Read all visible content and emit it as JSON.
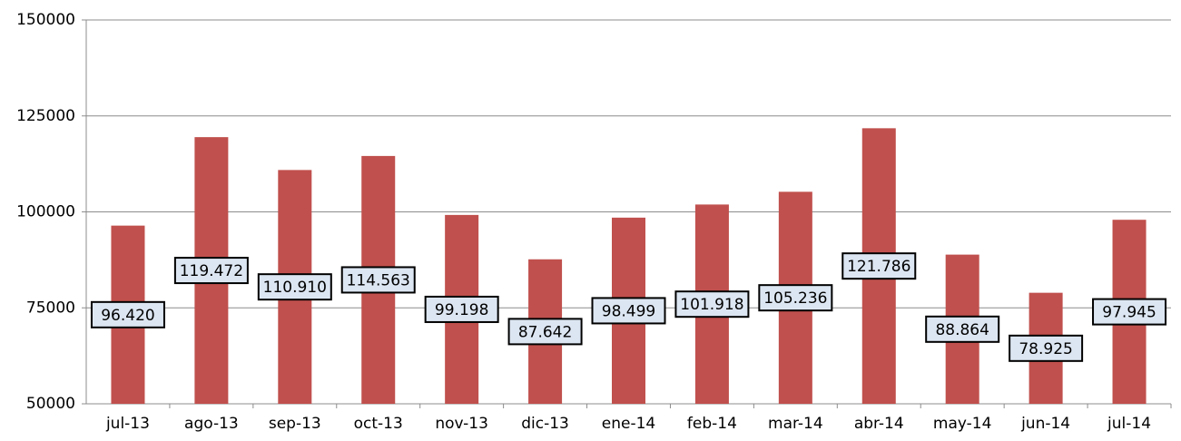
{
  "chart_data": {
    "type": "bar",
    "categories": [
      "jul-13",
      "ago-13",
      "sep-13",
      "oct-13",
      "nov-13",
      "dic-13",
      "ene-14",
      "feb-14",
      "mar-14",
      "abr-14",
      "may-14",
      "jun-14",
      "jul-14"
    ],
    "values": [
      96420,
      119472,
      110910,
      114563,
      99198,
      87642,
      98499,
      101918,
      105236,
      121786,
      88864,
      78925,
      97945
    ],
    "value_labels": [
      "96.420",
      "119.472",
      "110.910",
      "114.563",
      "99.198",
      "87.642",
      "98.499",
      "101.918",
      "105.236",
      "121.786",
      "88.864",
      "78.925",
      "97.945"
    ],
    "color": "#c0504d",
    "ylim": [
      50000,
      150000
    ],
    "yticks": [
      50000,
      75000,
      100000,
      125000,
      150000
    ],
    "grid": true
  }
}
